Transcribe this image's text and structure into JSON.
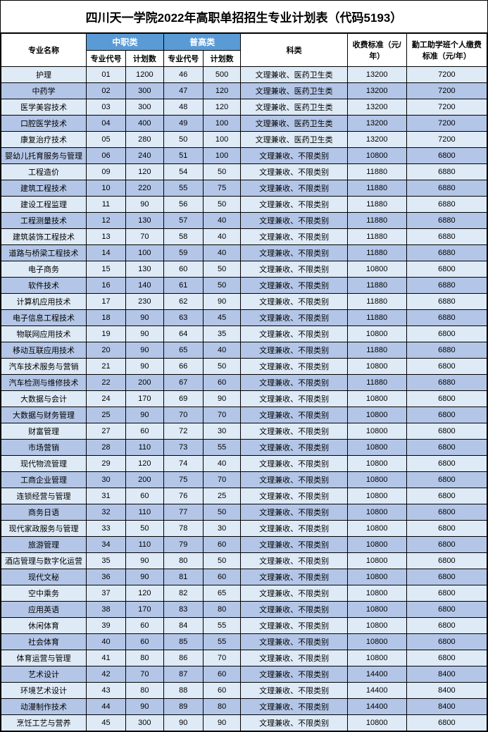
{
  "title": "四川天一学院2022年高职单招招生专业计划表（代码5193）",
  "headers": {
    "major": "专业名称",
    "zz_group": "中职类",
    "pg_group": "普高类",
    "code": "专业代号",
    "plan": "计划数",
    "category": "科类",
    "fee": "收费标准（元/年）",
    "aid": "勤工助学班个人缴费标准（元/年）"
  },
  "rows": [
    {
      "name": "护理",
      "zc": "01",
      "zp": "1200",
      "pc": "46",
      "pp": "500",
      "cat": "文理兼收、医药卫生类",
      "fee": "13200",
      "aid": "7200"
    },
    {
      "name": "中药学",
      "zc": "02",
      "zp": "300",
      "pc": "47",
      "pp": "120",
      "cat": "文理兼收、医药卫生类",
      "fee": "13200",
      "aid": "7200"
    },
    {
      "name": "医学美容技术",
      "zc": "03",
      "zp": "300",
      "pc": "48",
      "pp": "120",
      "cat": "文理兼收、医药卫生类",
      "fee": "13200",
      "aid": "7200"
    },
    {
      "name": "口腔医学技术",
      "zc": "04",
      "zp": "400",
      "pc": "49",
      "pp": "100",
      "cat": "文理兼收、医药卫生类",
      "fee": "13200",
      "aid": "7200"
    },
    {
      "name": "康复治疗技术",
      "zc": "05",
      "zp": "280",
      "pc": "50",
      "pp": "100",
      "cat": "文理兼收、医药卫生类",
      "fee": "13200",
      "aid": "7200"
    },
    {
      "name": "婴幼儿托育服务与管理",
      "zc": "06",
      "zp": "240",
      "pc": "51",
      "pp": "100",
      "cat": "文理兼收、不限类别",
      "fee": "10800",
      "aid": "6800"
    },
    {
      "name": "工程造价",
      "zc": "09",
      "zp": "120",
      "pc": "54",
      "pp": "50",
      "cat": "文理兼收、不限类别",
      "fee": "11880",
      "aid": "6880"
    },
    {
      "name": "建筑工程技术",
      "zc": "10",
      "zp": "220",
      "pc": "55",
      "pp": "75",
      "cat": "文理兼收、不限类别",
      "fee": "11880",
      "aid": "6880"
    },
    {
      "name": "建设工程监理",
      "zc": "11",
      "zp": "90",
      "pc": "56",
      "pp": "50",
      "cat": "文理兼收、不限类别",
      "fee": "11880",
      "aid": "6880"
    },
    {
      "name": "工程测量技术",
      "zc": "12",
      "zp": "130",
      "pc": "57",
      "pp": "40",
      "cat": "文理兼收、不限类别",
      "fee": "11880",
      "aid": "6880"
    },
    {
      "name": "建筑装饰工程技术",
      "zc": "13",
      "zp": "70",
      "pc": "58",
      "pp": "40",
      "cat": "文理兼收、不限类别",
      "fee": "11880",
      "aid": "6880"
    },
    {
      "name": "道路与桥梁工程技术",
      "zc": "14",
      "zp": "100",
      "pc": "59",
      "pp": "40",
      "cat": "文理兼收、不限类别",
      "fee": "11880",
      "aid": "6880"
    },
    {
      "name": "电子商务",
      "zc": "15",
      "zp": "130",
      "pc": "60",
      "pp": "50",
      "cat": "文理兼收、不限类别",
      "fee": "10800",
      "aid": "6800"
    },
    {
      "name": "软件技术",
      "zc": "16",
      "zp": "140",
      "pc": "61",
      "pp": "50",
      "cat": "文理兼收、不限类别",
      "fee": "11880",
      "aid": "6880"
    },
    {
      "name": "计算机应用技术",
      "zc": "17",
      "zp": "230",
      "pc": "62",
      "pp": "90",
      "cat": "文理兼收、不限类别",
      "fee": "11880",
      "aid": "6880"
    },
    {
      "name": "电子信息工程技术",
      "zc": "18",
      "zp": "90",
      "pc": "63",
      "pp": "45",
      "cat": "文理兼收、不限类别",
      "fee": "11880",
      "aid": "6880"
    },
    {
      "name": "物联网应用技术",
      "zc": "19",
      "zp": "90",
      "pc": "64",
      "pp": "35",
      "cat": "文理兼收、不限类别",
      "fee": "10800",
      "aid": "6800"
    },
    {
      "name": "移动互联应用技术",
      "zc": "20",
      "zp": "90",
      "pc": "65",
      "pp": "40",
      "cat": "文理兼收、不限类别",
      "fee": "11880",
      "aid": "6880"
    },
    {
      "name": "汽车技术服务与营销",
      "zc": "21",
      "zp": "90",
      "pc": "66",
      "pp": "50",
      "cat": "文理兼收、不限类别",
      "fee": "10800",
      "aid": "6800"
    },
    {
      "name": "汽车检测与维修技术",
      "zc": "22",
      "zp": "200",
      "pc": "67",
      "pp": "60",
      "cat": "文理兼收、不限类别",
      "fee": "11880",
      "aid": "6880"
    },
    {
      "name": "大数据与会计",
      "zc": "24",
      "zp": "170",
      "pc": "69",
      "pp": "90",
      "cat": "文理兼收、不限类别",
      "fee": "10800",
      "aid": "6800"
    },
    {
      "name": "大数据与财务管理",
      "zc": "25",
      "zp": "90",
      "pc": "70",
      "pp": "70",
      "cat": "文理兼收、不限类别",
      "fee": "10800",
      "aid": "6800"
    },
    {
      "name": "财富管理",
      "zc": "27",
      "zp": "60",
      "pc": "72",
      "pp": "30",
      "cat": "文理兼收、不限类别",
      "fee": "10800",
      "aid": "6800"
    },
    {
      "name": "市场营销",
      "zc": "28",
      "zp": "110",
      "pc": "73",
      "pp": "55",
      "cat": "文理兼收、不限类别",
      "fee": "10800",
      "aid": "6800"
    },
    {
      "name": "现代物流管理",
      "zc": "29",
      "zp": "120",
      "pc": "74",
      "pp": "40",
      "cat": "文理兼收、不限类别",
      "fee": "10800",
      "aid": "6800"
    },
    {
      "name": "工商企业管理",
      "zc": "30",
      "zp": "200",
      "pc": "75",
      "pp": "70",
      "cat": "文理兼收、不限类别",
      "fee": "10800",
      "aid": "6800"
    },
    {
      "name": "连锁经营与管理",
      "zc": "31",
      "zp": "60",
      "pc": "76",
      "pp": "25",
      "cat": "文理兼收、不限类别",
      "fee": "10800",
      "aid": "6800"
    },
    {
      "name": "商务日语",
      "zc": "32",
      "zp": "110",
      "pc": "77",
      "pp": "50",
      "cat": "文理兼收、不限类别",
      "fee": "10800",
      "aid": "6800"
    },
    {
      "name": "现代家政服务与管理",
      "zc": "33",
      "zp": "50",
      "pc": "78",
      "pp": "30",
      "cat": "文理兼收、不限类别",
      "fee": "10800",
      "aid": "6800"
    },
    {
      "name": "旅游管理",
      "zc": "34",
      "zp": "110",
      "pc": "79",
      "pp": "60",
      "cat": "文理兼收、不限类别",
      "fee": "10800",
      "aid": "6800"
    },
    {
      "name": "酒店管理与数字化运营",
      "zc": "35",
      "zp": "90",
      "pc": "80",
      "pp": "50",
      "cat": "文理兼收、不限类别",
      "fee": "10800",
      "aid": "6800"
    },
    {
      "name": "现代文秘",
      "zc": "36",
      "zp": "90",
      "pc": "81",
      "pp": "60",
      "cat": "文理兼收、不限类别",
      "fee": "10800",
      "aid": "6800"
    },
    {
      "name": "空中乘务",
      "zc": "37",
      "zp": "120",
      "pc": "82",
      "pp": "65",
      "cat": "文理兼收、不限类别",
      "fee": "10800",
      "aid": "6800"
    },
    {
      "name": "应用英语",
      "zc": "38",
      "zp": "170",
      "pc": "83",
      "pp": "80",
      "cat": "文理兼收、不限类别",
      "fee": "10800",
      "aid": "6800"
    },
    {
      "name": "休闲体育",
      "zc": "39",
      "zp": "60",
      "pc": "84",
      "pp": "55",
      "cat": "文理兼收、不限类别",
      "fee": "10800",
      "aid": "6800"
    },
    {
      "name": "社会体育",
      "zc": "40",
      "zp": "60",
      "pc": "85",
      "pp": "55",
      "cat": "文理兼收、不限类别",
      "fee": "10800",
      "aid": "6800"
    },
    {
      "name": "体育运营与管理",
      "zc": "41",
      "zp": "80",
      "pc": "86",
      "pp": "70",
      "cat": "文理兼收、不限类别",
      "fee": "10800",
      "aid": "6800"
    },
    {
      "name": "艺术设计",
      "zc": "42",
      "zp": "70",
      "pc": "87",
      "pp": "60",
      "cat": "文理兼收、不限类别",
      "fee": "14400",
      "aid": "8400"
    },
    {
      "name": "环境艺术设计",
      "zc": "43",
      "zp": "80",
      "pc": "88",
      "pp": "60",
      "cat": "文理兼收、不限类别",
      "fee": "14400",
      "aid": "8400"
    },
    {
      "name": "动漫制作技术",
      "zc": "44",
      "zp": "90",
      "pc": "89",
      "pp": "80",
      "cat": "文理兼收、不限类别",
      "fee": "14400",
      "aid": "8400"
    },
    {
      "name": "烹饪工艺与营养",
      "zc": "45",
      "zp": "300",
      "pc": "90",
      "pp": "90",
      "cat": "文理兼收、不限类别",
      "fee": "10800",
      "aid": "6800"
    }
  ]
}
